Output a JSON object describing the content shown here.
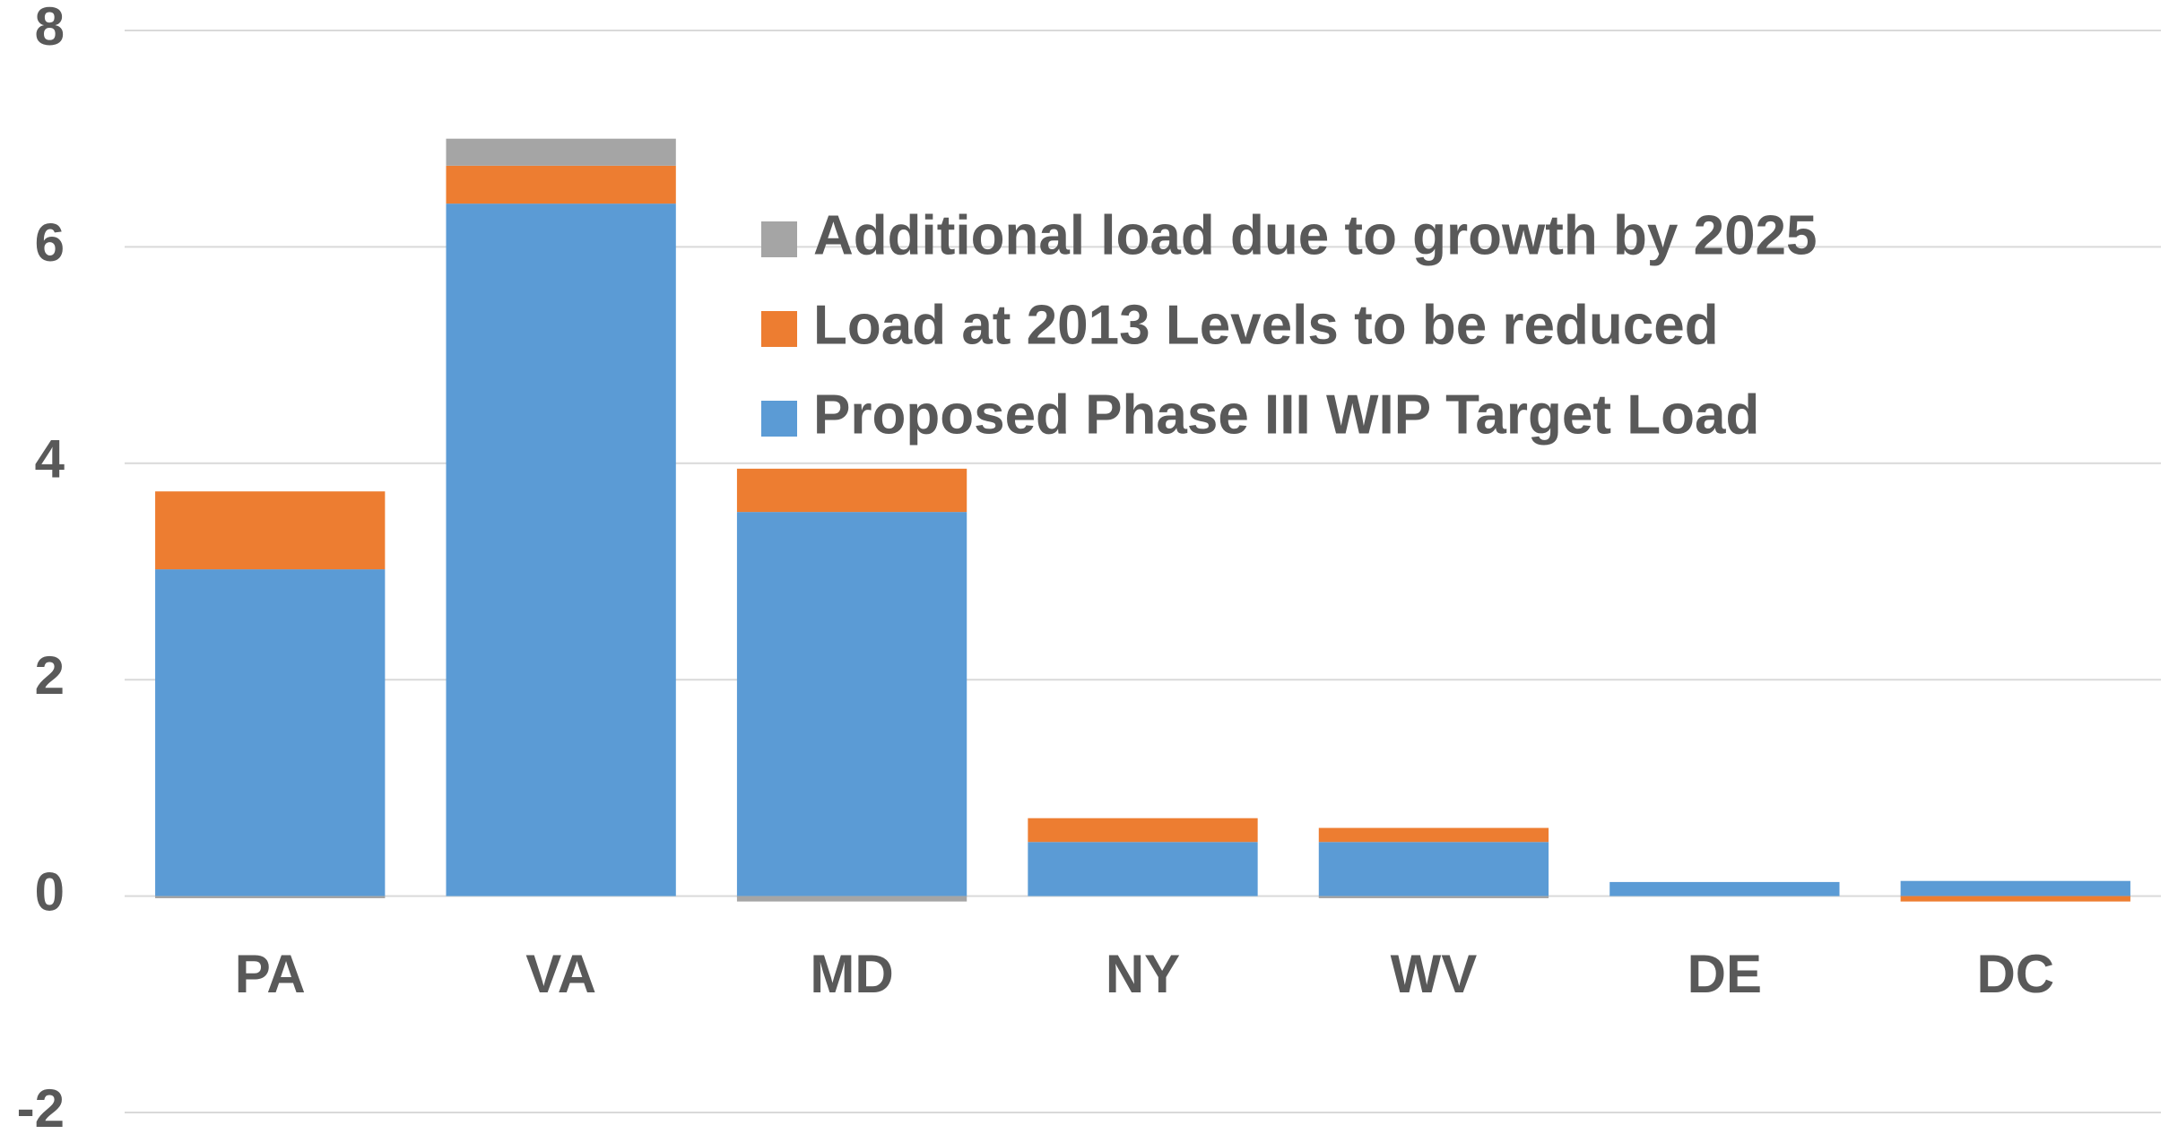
{
  "chart_data": {
    "type": "stacked_bar",
    "categories": [
      "PA",
      "VA",
      "MD",
      "NY",
      "WV",
      "DE",
      "DC"
    ],
    "series": [
      {
        "name": "Proposed Phase III WIP Target Load",
        "color": "#5b9bd5",
        "values": [
          3.02,
          6.4,
          3.55,
          0.5,
          0.5,
          0.13,
          0.14
        ]
      },
      {
        "name": "Load at 2013 Levels to be reduced",
        "color": "#ed7d31",
        "values": [
          0.72,
          0.35,
          0.4,
          0.22,
          0.13,
          0,
          -0.05
        ]
      },
      {
        "name": "Additional load due to growth by 2025",
        "color": "#a5a5a5",
        "values": [
          -0.02,
          0.25,
          -0.05,
          0,
          -0.02,
          0,
          0
        ]
      }
    ],
    "ylim": [
      -2,
      8
    ],
    "yticks": [
      -2,
      0,
      2,
      4,
      6,
      8
    ],
    "grid": true
  }
}
